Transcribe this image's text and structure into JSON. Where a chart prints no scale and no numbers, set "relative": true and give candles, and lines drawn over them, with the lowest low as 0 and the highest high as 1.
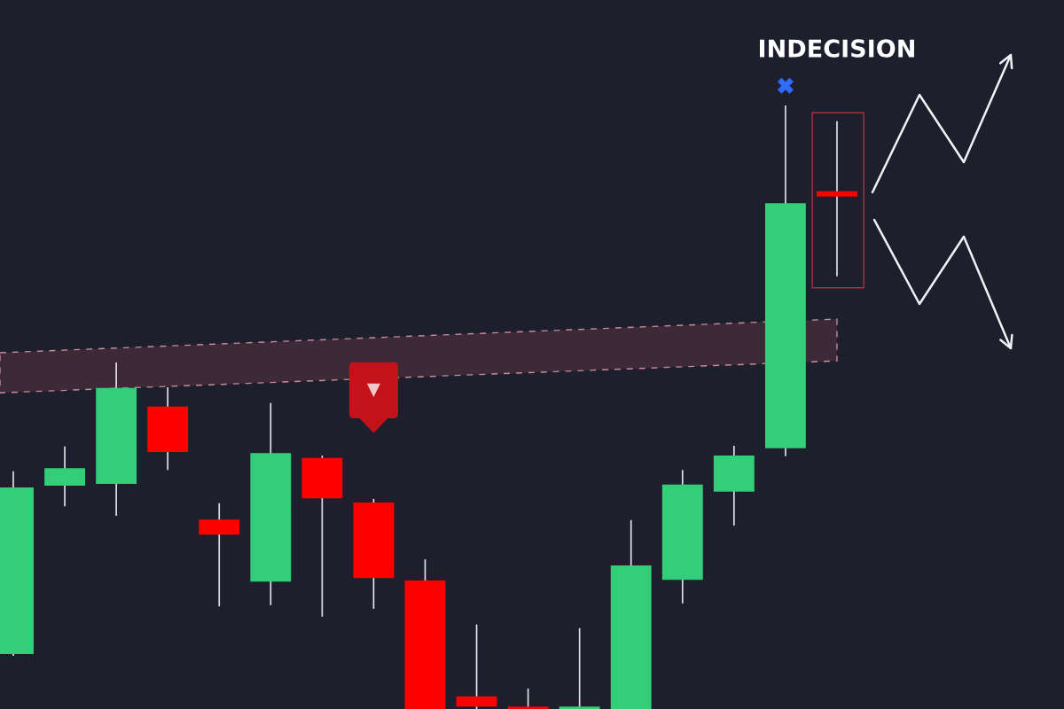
{
  "chart_data": {
    "type": "candlestick",
    "relative": true,
    "tick_labels": false,
    "categories": [
      null,
      null,
      null,
      null,
      null,
      null,
      null,
      null,
      null,
      null,
      null,
      null,
      null,
      null,
      null,
      null,
      null
    ],
    "ohlc": [
      [
        0.091,
        0.394,
        0.088,
        0.367
      ],
      [
        0.37,
        0.435,
        0.336,
        0.399
      ],
      [
        0.373,
        0.574,
        0.32,
        0.532
      ],
      [
        0.501,
        0.533,
        0.396,
        0.426
      ],
      [
        0.314,
        0.341,
        0.17,
        0.289
      ],
      [
        0.211,
        0.507,
        0.172,
        0.424
      ],
      [
        0.416,
        0.42,
        0.153,
        0.349
      ],
      [
        0.342,
        0.348,
        0.166,
        0.217
      ],
      [
        0.213,
        0.248,
        0,
        0
      ],
      [
        0.021,
        0.14,
        0,
        0.004
      ],
      [
        0.004,
        0.034,
        0,
        0
      ],
      [
        0,
        0.134,
        0,
        0.004
      ],
      [
        0,
        0.313,
        0,
        0.238
      ],
      [
        0.214,
        0.396,
        0.175,
        0.372
      ],
      [
        0.36,
        0.436,
        0.304,
        0.42
      ],
      [
        0.432,
        1,
        0.419,
        0.838
      ],
      [
        0.858,
        0.974,
        0.717,
        0.849
      ]
    ],
    "colors": [
      "#34cd7a",
      "#34cd7a",
      "#34cd7a",
      "#ff0000",
      "#ff0000",
      "#34cd7a",
      "#ff0000",
      "#ff0000",
      "#ff0000",
      "#ff0000",
      "#ff0000",
      "#34cd7a",
      "#34cd7a",
      "#34cd7a",
      "#34cd7a",
      "#34cd7a",
      "#ff0000"
    ],
    "annotations": [
      "INDECISION"
    ]
  }
}
